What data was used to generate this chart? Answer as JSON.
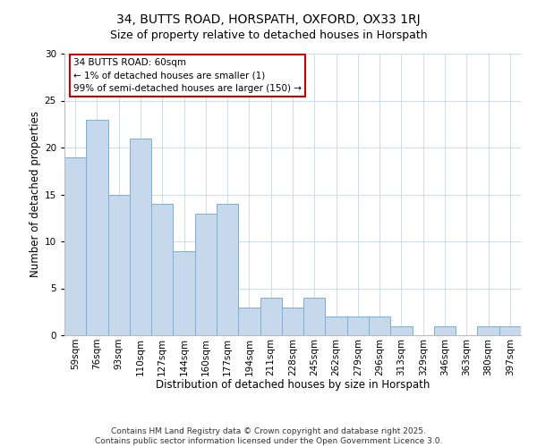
{
  "title1": "34, BUTTS ROAD, HORSPATH, OXFORD, OX33 1RJ",
  "title2": "Size of property relative to detached houses in Horspath",
  "xlabel": "Distribution of detached houses by size in Horspath",
  "ylabel": "Number of detached properties",
  "categories": [
    "59sqm",
    "76sqm",
    "93sqm",
    "110sqm",
    "127sqm",
    "144sqm",
    "160sqm",
    "177sqm",
    "194sqm",
    "211sqm",
    "228sqm",
    "245sqm",
    "262sqm",
    "279sqm",
    "296sqm",
    "313sqm",
    "329sqm",
    "346sqm",
    "363sqm",
    "380sqm",
    "397sqm"
  ],
  "values": [
    19,
    23,
    15,
    21,
    14,
    9,
    13,
    14,
    3,
    4,
    3,
    4,
    2,
    2,
    2,
    1,
    0,
    1,
    0,
    1,
    1
  ],
  "bar_facecolor": "#c6d9ec",
  "bar_edgecolor": "#7bafd4",
  "annotation_box_text": "34 BUTTS ROAD: 60sqm\n← 1% of detached houses are smaller (1)\n99% of semi-detached houses are larger (150) →",
  "annotation_box_facecolor": "#ffffff",
  "annotation_box_edgecolor": "#cc0000",
  "ylim": [
    0,
    30
  ],
  "yticks": [
    0,
    5,
    10,
    15,
    20,
    25,
    30
  ],
  "grid_color": "#d0dce8",
  "background_color": "#ffffff",
  "footer_text": "Contains HM Land Registry data © Crown copyright and database right 2025.\nContains public sector information licensed under the Open Government Licence 3.0.",
  "title1_fontsize": 10,
  "title2_fontsize": 9,
  "axis_label_fontsize": 8.5,
  "tick_fontsize": 7.5,
  "annotation_fontsize": 7.5,
  "footer_fontsize": 6.5
}
